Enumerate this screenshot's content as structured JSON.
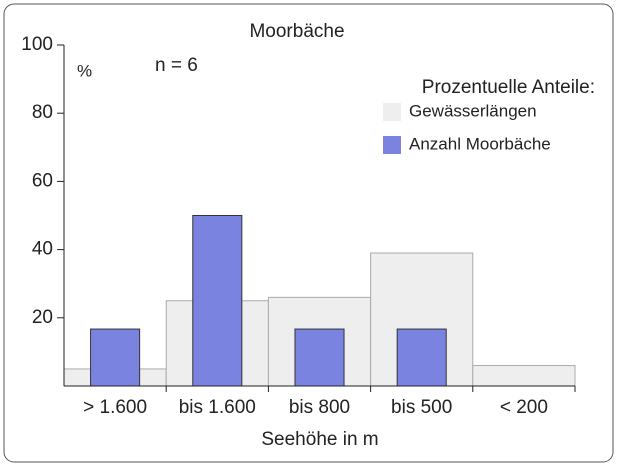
{
  "chart_data": {
    "type": "bar",
    "title": "Moorbäche",
    "subtitle": "n = 6",
    "y_label": "%",
    "x_label": "Seehöhe in m",
    "legend_title": "Prozentuelle Anteile:",
    "legend": "upper right",
    "categories": [
      "> 1.600",
      "bis 1.600",
      "bis 800",
      "bis 500",
      "< 200"
    ],
    "series": [
      {
        "name": "Gewässerlängen",
        "color": "#eeeeee",
        "values": [
          5,
          25,
          26,
          39,
          6
        ]
      },
      {
        "name": "Anzahl Moorbäche",
        "color": "#7b83e0",
        "values": [
          16.7,
          50,
          16.7,
          16.7,
          0
        ]
      }
    ],
    "ylim": [
      0,
      100
    ],
    "yticks": [
      20,
      40,
      60,
      80,
      100
    ]
  }
}
